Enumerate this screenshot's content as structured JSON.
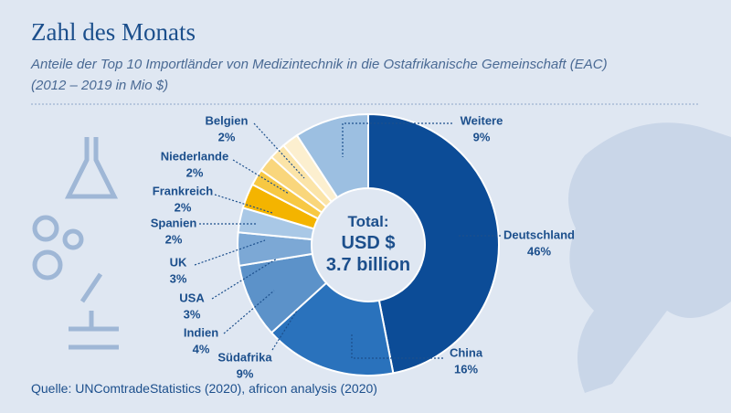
{
  "chart_data": {
    "type": "pie",
    "title": "Zahl des Monats",
    "subtitle": [
      "Anteile der Top 10 Importländer von Medizintechnik in die Ostafrikanische Gemeinschaft (EAC)",
      "(2012 – 2019 in Mio $)"
    ],
    "categories": [
      "Deutschland",
      "China",
      "Südafrika",
      "Indien",
      "USA",
      "UK",
      "Spanien",
      "Frankreich",
      "Niederlande",
      "Belgien",
      "Weitere"
    ],
    "values": [
      46,
      16,
      9,
      4,
      3,
      3,
      2,
      2,
      2,
      2,
      9
    ],
    "value_labels": [
      "46%",
      "16%",
      "9%",
      "4%",
      "3%",
      "3%",
      "2%",
      "2%",
      "2%",
      "2%",
      "9%"
    ],
    "colors": [
      "#0c4c97",
      "#2a72bc",
      "#5c92c9",
      "#7ca8d5",
      "#a9c8e6",
      "#f4b400",
      "#f7c843",
      "#f9d67c",
      "#fbe4a8",
      "#fcefcf",
      "#9cbfe1"
    ],
    "center_label": [
      "Total:",
      "USD $",
      "3.7 billion"
    ],
    "source": "Quelle: UNComtradeStatistics (2020), africon analysis (2020)"
  }
}
